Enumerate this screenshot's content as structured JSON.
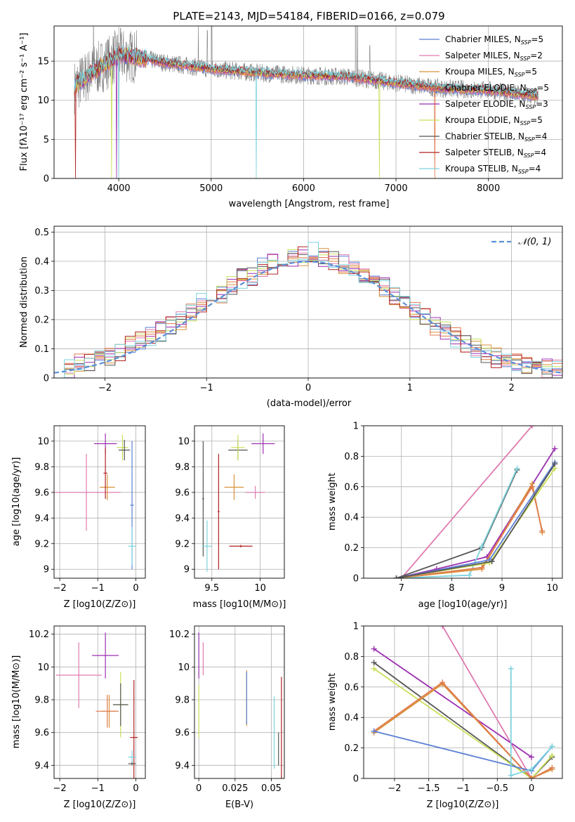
{
  "figure": {
    "title": "PLATE=2143, MJD=54184, FIBERID=0166, z=0.079"
  },
  "colors": {
    "Chabrier MILES": "#5b7fd6",
    "Salpeter MILES": "#e07bb0",
    "Kroupa MILES": "#d8923a",
    "Chabrier ELODIE": "#e07a4c",
    "Salpeter ELODIE": "#9b2fb0",
    "Kroupa ELODIE": "#c8e05a",
    "Chabrier STELIB": "#555555",
    "Salpeter STELIB": "#b22222",
    "Kroupa STELIB": "#7dd3dd",
    "normal": "#5b8fd8",
    "data": "#808080"
  },
  "chart_data": [
    {
      "id": "spectrum",
      "type": "line",
      "xlabel": "wavelength [Angstrom, rest frame]",
      "ylabel": "Flux [f_λ 10^-17 erg cm^-2 s^-1 A^-1]",
      "xlim": [
        3300,
        8800
      ],
      "ylim": [
        0,
        19.5
      ],
      "xticks": [
        4000,
        5000,
        6000,
        7000,
        8000
      ],
      "yticks": [
        0,
        5,
        10,
        15
      ],
      "legend_position": "upper right",
      "legend": [
        {
          "name": "Chabrier MILES",
          "label": "Chabrier MILES, N",
          "sub": "SSP",
          "n": "=5"
        },
        {
          "name": "Salpeter MILES",
          "label": "Salpeter MILES, N",
          "sub": "SSP",
          "n": "=2"
        },
        {
          "name": "Kroupa MILES",
          "label": "Kroupa MILES, N",
          "sub": "SSP",
          "n": "=5"
        },
        {
          "name": "Chabrier ELODIE",
          "label": "Chabrier ELODIE, N",
          "sub": "SSP",
          "n": "=5"
        },
        {
          "name": "Salpeter ELODIE",
          "label": "Salpeter ELODIE, N",
          "sub": "SSP",
          "n": "=3"
        },
        {
          "name": "Kroupa ELODIE",
          "label": "Kroupa ELODIE, N",
          "sub": "SSP",
          "n": "=5"
        },
        {
          "name": "Chabrier STELIB",
          "label": "Chabrier STELIB, N",
          "sub": "SSP",
          "n": "=4"
        },
        {
          "name": "Salpeter STELIB",
          "label": "Salpeter STELIB, N",
          "sub": "SSP",
          "n": "=4"
        },
        {
          "name": "Kroupa STELIB",
          "label": "Kroupa STELIB, N",
          "sub": "SSP",
          "n": "=4"
        }
      ],
      "continuum_nodes": [
        [
          3500,
          11.5
        ],
        [
          3700,
          13.5
        ],
        [
          3900,
          15.0
        ],
        [
          4000,
          15.8
        ],
        [
          4200,
          15.5
        ],
        [
          4500,
          14.8
        ],
        [
          5000,
          14.0
        ],
        [
          5500,
          13.5
        ],
        [
          6000,
          13.2
        ],
        [
          6500,
          13.0
        ],
        [
          7000,
          12.2
        ],
        [
          7500,
          11.5
        ],
        [
          8000,
          11.3
        ],
        [
          8500,
          10.5
        ]
      ],
      "emission_lines": [
        [
          3727,
          8
        ],
        [
          4861,
          6
        ],
        [
          4959,
          4
        ],
        [
          5007,
          9
        ],
        [
          6563,
          20
        ],
        [
          6583,
          10
        ],
        [
          6717,
          4
        ]
      ],
      "model_dropouts": [
        [
          3530,
          "Salpeter STELIB"
        ],
        [
          3920,
          "Kroupa ELODIE"
        ],
        [
          3975,
          "Salpeter ELODIE"
        ],
        [
          4000,
          "Kroupa STELIB"
        ],
        [
          5490,
          "Kroupa STELIB"
        ],
        [
          6820,
          "Kroupa ELODIE"
        ],
        [
          7420,
          "Chabrier ELODIE"
        ]
      ]
    },
    {
      "id": "residuals",
      "type": "line",
      "xlabel": "(data-model)/error",
      "ylabel": "Normed distribution",
      "xlim": [
        -2.5,
        2.5
      ],
      "ylim": [
        0,
        0.52
      ],
      "xticks": [
        -2,
        -1,
        0,
        1,
        2
      ],
      "yticks": [
        0.0,
        0.1,
        0.2,
        0.3,
        0.4,
        0.5
      ],
      "legend_position": "upper right",
      "normal_label": "𝒩(0, 1)",
      "bin_edges": [
        -2.5,
        -2.4,
        -2.3,
        -2.2,
        -2.1,
        -2.0,
        -1.9,
        -1.8,
        -1.7,
        -1.6,
        -1.5,
        -1.4,
        -1.3,
        -1.2,
        -1.1,
        -1.0,
        -0.9,
        -0.8,
        -0.7,
        -0.6,
        -0.5,
        -0.4,
        -0.3,
        -0.2,
        -0.1,
        0.0,
        0.1,
        0.2,
        0.3,
        0.4,
        0.5,
        0.6,
        0.7,
        0.8,
        0.9,
        1.0,
        1.1,
        1.2,
        1.3,
        1.4,
        1.5,
        1.6,
        1.7,
        1.8,
        1.9,
        2.0,
        2.1,
        2.2,
        2.3,
        2.4,
        2.5
      ],
      "hist_shape": [
        0.03,
        0.03,
        0.05,
        0.06,
        0.06,
        0.07,
        0.09,
        0.12,
        0.13,
        0.14,
        0.16,
        0.18,
        0.2,
        0.23,
        0.26,
        0.27,
        0.29,
        0.32,
        0.34,
        0.35,
        0.38,
        0.39,
        0.4,
        0.41,
        0.42,
        0.43,
        0.41,
        0.4,
        0.39,
        0.38,
        0.36,
        0.34,
        0.31,
        0.28,
        0.25,
        0.23,
        0.21,
        0.18,
        0.16,
        0.14,
        0.12,
        0.1,
        0.08,
        0.07,
        0.06,
        0.05,
        0.05,
        0.04,
        0.03,
        0.03
      ]
    },
    {
      "id": "age-vs-Z",
      "type": "scatter",
      "xlabel": "Z [log10(Z/Z⊙)]",
      "ylabel": "age [log10(age/yr)]",
      "xlim": [
        -2.15,
        0.25
      ],
      "ylim": [
        8.93,
        10.12
      ],
      "xticks": [
        -2,
        -1,
        0
      ],
      "yticks": [
        9.0,
        9.2,
        9.4,
        9.6,
        9.8,
        10.0
      ],
      "points": [
        {
          "series": "Salpeter MILES",
          "x": -1.3,
          "y": 9.6,
          "xerr": 0.9,
          "yerr": 0.3
        },
        {
          "series": "Salpeter ELODIE",
          "x": -0.8,
          "y": 9.98,
          "xerr": 0.3,
          "yerr": 0.08
        },
        {
          "series": "Kroupa MILES",
          "x": -0.75,
          "y": 9.64,
          "xerr": 0.2,
          "yerr": 0.1
        },
        {
          "series": "Salpeter STELIB",
          "x": -0.8,
          "y": 9.75,
          "xerr": 0.05,
          "yerr": 0.2
        },
        {
          "series": "Kroupa ELODIE",
          "x": -0.35,
          "y": 9.95,
          "xerr": 0.15,
          "yerr": 0.1
        },
        {
          "series": "Chabrier STELIB",
          "x": -0.3,
          "y": 9.93,
          "xerr": 0.15,
          "yerr": 0.08
        },
        {
          "series": "Chabrier MILES",
          "x": -0.1,
          "y": 9.5,
          "xerr": 0.05,
          "yerr": 0.5
        },
        {
          "series": "Kroupa STELIB",
          "x": -0.1,
          "y": 9.18,
          "xerr": 0.1,
          "yerr": 0.15
        }
      ]
    },
    {
      "id": "age-vs-mass",
      "type": "scatter",
      "xlabel": "mass [log10(M/M⊙)]",
      "ylabel": "",
      "xlim": [
        9.32,
        10.25
      ],
      "ylim": [
        8.93,
        10.12
      ],
      "xticks": [
        9.5,
        10.0
      ],
      "yticks": [
        9.0,
        9.2,
        9.4,
        9.6,
        9.8,
        10.0
      ],
      "points": [
        {
          "series": "Chabrier STELIB",
          "x": 9.41,
          "y": 9.55,
          "xerr": 0.01,
          "yerr": 0.45
        },
        {
          "series": "Kroupa STELIB",
          "x": 9.45,
          "y": 9.18,
          "xerr": 0.05,
          "yerr": 0.2
        },
        {
          "series": "Salpeter STELIB",
          "x": 9.57,
          "y": 9.45,
          "xerr": 0.01,
          "yerr": 0.45
        },
        {
          "series": "Kroupa MILES",
          "x": 9.73,
          "y": 9.64,
          "xerr": 0.1,
          "yerr": 0.1
        },
        {
          "series": "Chabrier STELIB",
          "x": 9.77,
          "y": 9.93,
          "xerr": 0.1,
          "yerr": 0.08
        },
        {
          "series": "Kroupa ELODIE",
          "x": 9.77,
          "y": 9.95,
          "xerr": 0.07,
          "yerr": 0.1
        },
        {
          "series": "Salpeter STELIB",
          "x": 9.8,
          "y": 9.18,
          "xerr": 0.12,
          "yerr": 0.01
        },
        {
          "series": "Salpeter ELODIE",
          "x": 10.03,
          "y": 9.98,
          "xerr": 0.12,
          "yerr": 0.08
        },
        {
          "series": "Salpeter MILES",
          "x": 9.95,
          "y": 9.6,
          "xerr": 0.1,
          "yerr": 0.05
        }
      ]
    },
    {
      "id": "weight-vs-age",
      "type": "line",
      "xlabel": "age [log10(age/yr)]",
      "ylabel": "mass weight",
      "xlim": [
        6.25,
        10.2
      ],
      "ylim": [
        0,
        1.0
      ],
      "xticks": [
        7,
        8,
        9,
        10
      ],
      "yticks": [
        0.0,
        0.2,
        0.4,
        0.6,
        0.8,
        1.0
      ],
      "series": [
        {
          "name": "Salpeter MILES",
          "x": [
            7.0,
            9.6
          ],
          "y": [
            0.0,
            1.0
          ]
        },
        {
          "name": "Salpeter ELODIE",
          "x": [
            6.9,
            7.7,
            8.7,
            10.05
          ],
          "y": [
            0.0,
            0.06,
            0.14,
            0.85
          ]
        },
        {
          "name": "Chabrier STELIB",
          "x": [
            6.9,
            8.6,
            9.3
          ],
          "y": [
            0.0,
            0.2,
            0.71
          ]
        },
        {
          "name": "Kroupa STELIB",
          "x": [
            6.9,
            8.35,
            8.6,
            9.3
          ],
          "y": [
            0.0,
            0.02,
            0.21,
            0.72
          ]
        },
        {
          "name": "Kroupa MILES",
          "x": [
            6.9,
            8.6,
            9.6,
            9.8
          ],
          "y": [
            0.0,
            0.06,
            0.62,
            0.3
          ]
        },
        {
          "name": "Chabrier ELODIE",
          "x": [
            6.9,
            8.6,
            9.6,
            9.8
          ],
          "y": [
            0.0,
            0.07,
            0.6,
            0.31
          ]
        },
        {
          "name": "Kroupa ELODIE",
          "x": [
            6.9,
            8.75,
            10.05
          ],
          "y": [
            0.0,
            0.1,
            0.72
          ]
        },
        {
          "name": "Chabrier MILES",
          "x": [
            6.9,
            8.75,
            10.05
          ],
          "y": [
            0.0,
            0.12,
            0.76
          ]
        },
        {
          "name": "Chabrier STELIB",
          "x": [
            6.9,
            8.8,
            10.05
          ],
          "y": [
            0.0,
            0.11,
            0.75
          ]
        }
      ]
    },
    {
      "id": "mass-vs-Z",
      "type": "scatter",
      "xlabel": "Z [log10(Z/Z⊙)]",
      "ylabel": "mass [log10(M/M⊙)]",
      "xlim": [
        -2.15,
        0.25
      ],
      "ylim": [
        9.32,
        10.25
      ],
      "xticks": [
        -2,
        -1,
        0
      ],
      "yticks": [
        9.4,
        9.6,
        9.8,
        10.0,
        10.2
      ],
      "points": [
        {
          "series": "Salpeter MILES",
          "x": -1.5,
          "y": 9.95,
          "xerr": 0.6,
          "yerr": 0.2
        },
        {
          "series": "Salpeter ELODIE",
          "x": -0.8,
          "y": 10.07,
          "xerr": 0.35,
          "yerr": 0.14
        },
        {
          "series": "Kroupa MILES",
          "x": -0.7,
          "y": 9.73,
          "xerr": 0.2,
          "yerr": 0.1
        },
        {
          "series": "Chabrier ELODIE",
          "x": -0.75,
          "y": 9.73,
          "xerr": 0.3,
          "yerr": 0.1
        },
        {
          "series": "Kroupa ELODIE",
          "x": -0.4,
          "y": 9.77,
          "xerr": 0.2,
          "yerr": 0.2
        },
        {
          "series": "Chabrier STELIB",
          "x": -0.4,
          "y": 9.77,
          "xerr": 0.2,
          "yerr": 0.13
        },
        {
          "series": "Salpeter STELIB",
          "x": -0.05,
          "y": 9.57,
          "xerr": 0.1,
          "yerr": 0.35
        },
        {
          "series": "Kroupa STELIB",
          "x": -0.1,
          "y": 9.45,
          "xerr": 0.1,
          "yerr": 0.04
        },
        {
          "series": "Chabrier STELIB",
          "x": -0.1,
          "y": 9.41,
          "xerr": 0.1,
          "yerr": 0.01
        }
      ]
    },
    {
      "id": "mass-vs-EBV",
      "type": "scatter",
      "xlabel": "E(B-V)",
      "ylabel": "",
      "xlim": [
        -0.003,
        0.059
      ],
      "ylim": [
        9.32,
        10.25
      ],
      "xticks": [
        0.0,
        0.025,
        0.05
      ],
      "yticks": [
        9.4,
        9.6,
        9.8,
        10.0,
        10.2
      ],
      "points": [
        {
          "series": "Salpeter ELODIE",
          "x": 0.0,
          "y": 10.07,
          "xerr": 0,
          "yerr": 0.14
        },
        {
          "series": "Salpeter MILES",
          "x": 0.003,
          "y": 10.05,
          "xerr": 0,
          "yerr": 0.1
        },
        {
          "series": "Kroupa ELODIE",
          "x": 0.0,
          "y": 9.73,
          "xerr": 0,
          "yerr": 0.16
        },
        {
          "series": "Kroupa MILES",
          "x": 0.033,
          "y": 9.81,
          "xerr": 0,
          "yerr": 0.17
        },
        {
          "series": "Chabrier MILES",
          "x": 0.033,
          "y": 9.81,
          "xerr": 0,
          "yerr": 0.16
        },
        {
          "series": "Kroupa STELIB",
          "x": 0.052,
          "y": 9.6,
          "xerr": 0,
          "yerr": 0.22
        },
        {
          "series": "Chabrier STELIB",
          "x": 0.055,
          "y": 9.5,
          "xerr": 0,
          "yerr": 0.1
        },
        {
          "series": "Salpeter STELIB",
          "x": 0.057,
          "y": 9.6,
          "xerr": 0,
          "yerr": 0.34
        }
      ]
    },
    {
      "id": "weight-vs-Z",
      "type": "line",
      "xlabel": "Z [log10(Z/Z⊙)]",
      "ylabel": "mass weight",
      "xlim": [
        -2.45,
        0.45
      ],
      "ylim": [
        0,
        1.0
      ],
      "xticks": [
        -2.0,
        -1.5,
        -1.0,
        -0.5,
        0.0
      ],
      "yticks": [
        0.0,
        0.2,
        0.4,
        0.6,
        0.8,
        1.0
      ],
      "series": [
        {
          "name": "Salpeter MILES",
          "x": [
            -1.3,
            0.0
          ],
          "y": [
            1.0,
            0.0
          ]
        },
        {
          "name": "Salpeter ELODIE",
          "x": [
            -2.3,
            0.0
          ],
          "y": [
            0.85,
            0.14
          ]
        },
        {
          "name": "Chabrier STELIB",
          "x": [
            -2.3,
            0.0,
            0.3
          ],
          "y": [
            0.76,
            0.0,
            0.14
          ]
        },
        {
          "name": "Kroupa ELODIE",
          "x": [
            -2.3,
            0.0,
            0.3
          ],
          "y": [
            0.72,
            0.0,
            0.15
          ]
        },
        {
          "name": "Kroupa MILES",
          "x": [
            -2.3,
            -1.3,
            0.0,
            0.3
          ],
          "y": [
            0.3,
            0.62,
            0.0,
            0.06
          ]
        },
        {
          "name": "Chabrier ELODIE",
          "x": [
            -2.3,
            -1.3,
            0.0,
            0.3
          ],
          "y": [
            0.31,
            0.63,
            0.0,
            0.07
          ]
        },
        {
          "name": "Chabrier MILES",
          "x": [
            -2.3,
            0.0,
            0.3
          ],
          "y": [
            0.31,
            0.05,
            0.21
          ]
        },
        {
          "name": "Kroupa STELIB",
          "x": [
            -0.3,
            -0.3,
            0.0,
            0.3
          ],
          "y": [
            0.72,
            0.02,
            0.06,
            0.21
          ]
        }
      ]
    }
  ]
}
